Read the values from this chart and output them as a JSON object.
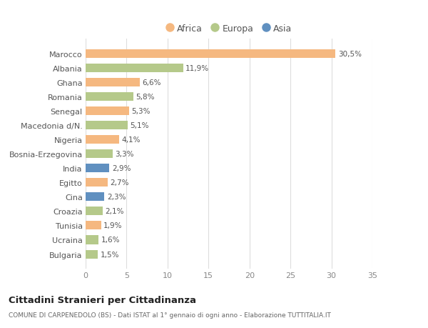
{
  "countries": [
    "Marocco",
    "Albania",
    "Ghana",
    "Romania",
    "Senegal",
    "Macedonia d/N.",
    "Nigeria",
    "Bosnia-Erzegovina",
    "India",
    "Egitto",
    "Cina",
    "Croazia",
    "Tunisia",
    "Ucraina",
    "Bulgaria"
  ],
  "values": [
    30.5,
    11.9,
    6.6,
    5.8,
    5.3,
    5.1,
    4.1,
    3.3,
    2.9,
    2.7,
    2.3,
    2.1,
    1.9,
    1.6,
    1.5
  ],
  "continents": [
    "Africa",
    "Europa",
    "Africa",
    "Europa",
    "Africa",
    "Europa",
    "Africa",
    "Europa",
    "Asia",
    "Africa",
    "Asia",
    "Europa",
    "Africa",
    "Europa",
    "Europa"
  ],
  "labels": [
    "30,5%",
    "11,9%",
    "6,6%",
    "5,8%",
    "5,3%",
    "5,1%",
    "4,1%",
    "3,3%",
    "2,9%",
    "2,7%",
    "2,3%",
    "2,1%",
    "1,9%",
    "1,6%",
    "1,5%"
  ],
  "colors": {
    "Africa": "#f5b880",
    "Europa": "#b5c98a",
    "Asia": "#6090c0"
  },
  "legend_labels": [
    "Africa",
    "Europa",
    "Asia"
  ],
  "legend_colors": [
    "#f5b880",
    "#b5c98a",
    "#6090c0"
  ],
  "xlim": [
    0,
    35
  ],
  "xticks": [
    0,
    5,
    10,
    15,
    20,
    25,
    30,
    35
  ],
  "title1": "Cittadini Stranieri per Cittadinanza",
  "title2": "COMUNE DI CARPENEDOLO (BS) - Dati ISTAT al 1° gennaio di ogni anno - Elaborazione TUTTITALIA.IT",
  "background_color": "#ffffff"
}
